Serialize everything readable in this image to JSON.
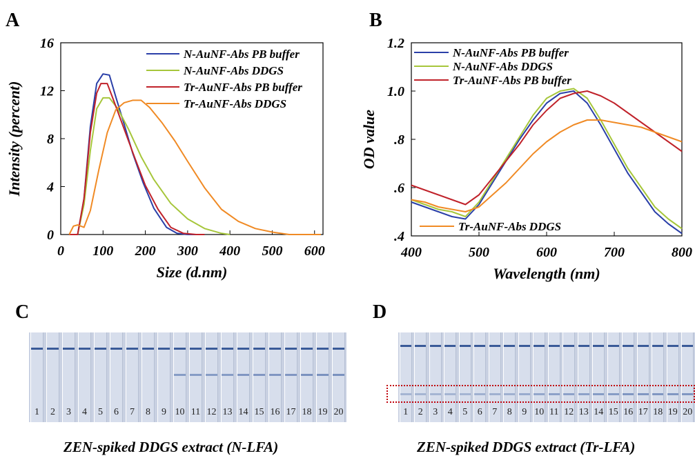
{
  "panels": {
    "A": "A",
    "B": "B",
    "C": "C",
    "D": "D"
  },
  "chart_data": [
    {
      "type": "line",
      "panel": "A",
      "xlabel": "Size (d.nm)",
      "ylabel": "Intensity (percent)",
      "xlim": [
        0,
        620
      ],
      "ylim": [
        0,
        16
      ],
      "xticks": [
        0,
        100,
        200,
        300,
        400,
        500,
        600
      ],
      "yticks": [
        0,
        4,
        8,
        12,
        16
      ],
      "legend": "top-right",
      "series": [
        {
          "name": "N-AuNF-Abs PB buffer",
          "color": "#2a3fa8",
          "x": [
            20,
            40,
            55,
            70,
            85,
            100,
            115,
            130,
            150,
            170,
            195,
            220,
            250,
            275,
            300,
            320
          ],
          "y": [
            0,
            0,
            3,
            9,
            12.6,
            13.4,
            13.3,
            11.5,
            9.2,
            6.8,
            4.3,
            2.2,
            0.6,
            0.1,
            0,
            0
          ]
        },
        {
          "name": "N-AuNF-Abs DDGS",
          "color": "#a6c63a",
          "x": [
            20,
            40,
            55,
            70,
            85,
            100,
            115,
            135,
            160,
            190,
            220,
            260,
            300,
            340,
            380,
            400
          ],
          "y": [
            0,
            0,
            2.5,
            7,
            10.5,
            11.4,
            11.4,
            10.5,
            8.8,
            6.5,
            4.6,
            2.6,
            1.3,
            0.5,
            0.1,
            0
          ]
        },
        {
          "name": "Tr-AuNF-Abs PB buffer",
          "color": "#c0222a",
          "x": [
            20,
            40,
            55,
            70,
            85,
            95,
            110,
            125,
            150,
            175,
            200,
            230,
            260,
            290,
            320,
            340
          ],
          "y": [
            0,
            0,
            3,
            8.5,
            11.8,
            12.6,
            12.6,
            11.2,
            8.8,
            6.4,
            4.1,
            2.1,
            0.6,
            0.1,
            0,
            0
          ]
        },
        {
          "name": "Tr-AuNF-Abs DDGS",
          "color": "#f08a24",
          "x": [
            20,
            30,
            40,
            55,
            70,
            90,
            110,
            130,
            150,
            170,
            190,
            210,
            240,
            270,
            300,
            340,
            380,
            420,
            460,
            500,
            540,
            580,
            615
          ],
          "y": [
            0,
            0.7,
            0.8,
            0.6,
            2,
            5.4,
            8.5,
            10.4,
            11.0,
            11.2,
            11.2,
            10.6,
            9.3,
            7.8,
            6.1,
            3.9,
            2.1,
            1.1,
            0.5,
            0.2,
            0,
            0,
            0
          ]
        }
      ]
    },
    {
      "type": "line",
      "panel": "B",
      "xlabel": "Wavelength (nm)",
      "ylabel": "OD value",
      "xlim": [
        400,
        800
      ],
      "ylim": [
        0.4,
        1.2
      ],
      "xticks": [
        400,
        500,
        600,
        700,
        800
      ],
      "yticks": [
        0.4,
        0.6,
        0.8,
        1.0,
        1.2
      ],
      "ytick_labels": [
        ".4",
        ".6",
        ".8",
        "1.0",
        "1.2"
      ],
      "legend": "top-left",
      "series": [
        {
          "name": "N-AuNF-Abs PB buffer",
          "color": "#2a3fa8",
          "x": [
            400,
            420,
            440,
            460,
            480,
            500,
            520,
            540,
            560,
            580,
            600,
            620,
            640,
            660,
            680,
            700,
            720,
            740,
            760,
            780,
            800
          ],
          "y": [
            0.54,
            0.52,
            0.5,
            0.48,
            0.47,
            0.53,
            0.62,
            0.71,
            0.8,
            0.88,
            0.95,
            0.99,
            1.0,
            0.95,
            0.86,
            0.76,
            0.66,
            0.58,
            0.5,
            0.45,
            0.41
          ]
        },
        {
          "name": "N-AuNF-Abs DDGS",
          "color": "#a6c63a",
          "x": [
            400,
            420,
            440,
            460,
            480,
            500,
            520,
            540,
            560,
            580,
            600,
            620,
            640,
            660,
            680,
            700,
            720,
            740,
            760,
            780,
            800
          ],
          "y": [
            0.55,
            0.53,
            0.51,
            0.5,
            0.48,
            0.54,
            0.63,
            0.72,
            0.81,
            0.9,
            0.97,
            1.0,
            1.01,
            0.97,
            0.88,
            0.78,
            0.68,
            0.6,
            0.52,
            0.47,
            0.43
          ]
        },
        {
          "name": "Tr-AuNF-Abs PB buffer",
          "color": "#c0222a",
          "x": [
            400,
            420,
            440,
            460,
            480,
            500,
            520,
            540,
            560,
            580,
            600,
            620,
            640,
            660,
            680,
            700,
            720,
            740,
            760,
            780,
            800
          ],
          "y": [
            0.61,
            0.59,
            0.57,
            0.55,
            0.53,
            0.57,
            0.64,
            0.71,
            0.78,
            0.86,
            0.92,
            0.97,
            0.99,
            1.0,
            0.98,
            0.95,
            0.91,
            0.87,
            0.83,
            0.79,
            0.75
          ]
        },
        {
          "name": "Tr-AuNF-Abs DDGS",
          "color": "#f08a24",
          "x": [
            400,
            420,
            440,
            460,
            480,
            500,
            520,
            540,
            560,
            580,
            600,
            620,
            640,
            660,
            680,
            700,
            720,
            740,
            760,
            780,
            800
          ],
          "y": [
            0.55,
            0.54,
            0.52,
            0.51,
            0.5,
            0.52,
            0.57,
            0.62,
            0.68,
            0.74,
            0.79,
            0.83,
            0.86,
            0.88,
            0.88,
            0.87,
            0.86,
            0.85,
            0.83,
            0.81,
            0.79
          ]
        }
      ]
    }
  ],
  "strips_C": {
    "caption": "ZEN-spiked DDGS extract (N-LFA)",
    "numbers": [
      "1",
      "2",
      "3",
      "4",
      "5",
      "6",
      "7",
      "8",
      "9",
      "10",
      "11",
      "12",
      "13",
      "14",
      "15",
      "16",
      "17",
      "18",
      "19",
      "20"
    ],
    "control_line_color": "#3a5a98",
    "test_line_color": "#5b78b0",
    "test_line_intensity": [
      0,
      0,
      0,
      0,
      0,
      0,
      0,
      0,
      0,
      0.65,
      0.65,
      0.65,
      0.65,
      0.7,
      0.7,
      0.7,
      0.7,
      0.75,
      0.75,
      0.75
    ]
  },
  "strips_D": {
    "caption": "ZEN-spiked DDGS extract (Tr-LFA)",
    "numbers": [
      "1",
      "2",
      "3",
      "4",
      "5",
      "6",
      "7",
      "8",
      "9",
      "10",
      "11",
      "12",
      "13",
      "14",
      "15",
      "16",
      "17",
      "18",
      "19",
      "20"
    ],
    "control_line_color": "#3a5a98",
    "test_line_color": "#5b78b0",
    "highlight_color": "#c0000a",
    "test_line_intensity": [
      0.4,
      0.4,
      0.4,
      0.4,
      0.4,
      0.45,
      0.45,
      0.45,
      0.5,
      0.55,
      0.6,
      0.6,
      0.6,
      0.65,
      0.65,
      0.7,
      0.7,
      0.7,
      0.7,
      0.7
    ]
  }
}
